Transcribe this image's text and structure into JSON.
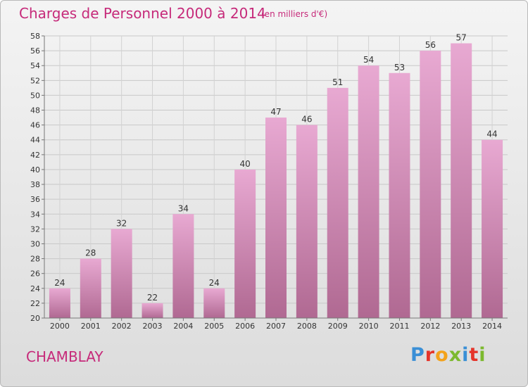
{
  "header": {
    "title": "Charges de Personnel 2000 à 2014",
    "subtitle": "(en milliers d'€)"
  },
  "footer": {
    "commune": "CHAMBLAY",
    "logo_text": "Proxiti"
  },
  "colors": {
    "title": "#c62a7a",
    "bar_top": "#e8a9d2",
    "bar_bottom": "#b06992",
    "logo": [
      "#3a8fd6",
      "#e5342a",
      "#f3a21b",
      "#7cb92e",
      "#3a8fd6",
      "#e5342a",
      "#7cb92e"
    ]
  },
  "chart_data": {
    "type": "bar",
    "categories": [
      "2000",
      "2001",
      "2002",
      "2003",
      "2004",
      "2005",
      "2006",
      "2007",
      "2008",
      "2009",
      "2010",
      "2011",
      "2012",
      "2013",
      "2014"
    ],
    "values": [
      24,
      28,
      32,
      22,
      34,
      24,
      40,
      47,
      46,
      51,
      54,
      53,
      56,
      57,
      44
    ],
    "ylim": [
      20,
      58
    ],
    "yticks": [
      20,
      22,
      24,
      26,
      28,
      30,
      32,
      34,
      36,
      38,
      40,
      42,
      44,
      46,
      48,
      50,
      52,
      54,
      56,
      58
    ],
    "grid": true,
    "data_labels": true
  }
}
